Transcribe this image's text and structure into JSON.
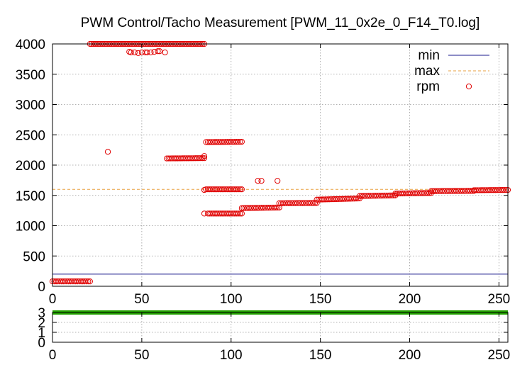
{
  "chart_data": [
    {
      "type": "scatter",
      "title": "PWM Control/Tacho Measurement [PWM_11_0x2e_0_F14_T0.log]",
      "xlabel": "",
      "ylabel": "",
      "xlim": [
        0,
        255
      ],
      "ylim": [
        0,
        4000
      ],
      "xticks": [
        0,
        50,
        100,
        150,
        200,
        250
      ],
      "yticks": [
        0,
        500,
        1000,
        1500,
        2000,
        2500,
        3000,
        3500,
        4000
      ],
      "grid": true,
      "legend_position": "top-right",
      "series": [
        {
          "name": "min",
          "style": "line",
          "color": "#1a1a8c",
          "values": [
            {
              "x": 0,
              "y": 200
            },
            {
              "x": 255,
              "y": 200
            }
          ]
        },
        {
          "name": "max",
          "style": "dashed",
          "color": "#e8a040",
          "values": [
            {
              "x": 0,
              "y": 1600
            },
            {
              "x": 255,
              "y": 1600
            }
          ]
        },
        {
          "name": "rpm",
          "style": "points",
          "color": "#e00000",
          "segments": [
            {
              "x_start": 0,
              "x_end": 21,
              "y_start": 80,
              "y_end": 80
            },
            {
              "x_start": 21,
              "x_end": 85,
              "y_start": 4000,
              "y_end": 4000
            },
            {
              "x_start": 87,
              "x_end": 106,
              "y_start": 1200,
              "y_end": 1200
            },
            {
              "x_start": 106,
              "x_end": 127,
              "y_start": 1290,
              "y_end": 1300
            },
            {
              "x_start": 127,
              "x_end": 148,
              "y_start": 1370,
              "y_end": 1375
            },
            {
              "x_start": 148,
              "x_end": 172,
              "y_start": 1430,
              "y_end": 1450
            },
            {
              "x_start": 172,
              "x_end": 192,
              "y_start": 1490,
              "y_end": 1500
            },
            {
              "x_start": 192,
              "x_end": 212,
              "y_start": 1530,
              "y_end": 1540
            },
            {
              "x_start": 212,
              "x_end": 236,
              "y_start": 1570,
              "y_end": 1575
            },
            {
              "x_start": 236,
              "x_end": 255,
              "y_start": 1585,
              "y_end": 1590
            },
            {
              "x_start": 86,
              "x_end": 106,
              "y_start": 2380,
              "y_end": 2385
            },
            {
              "x_start": 86,
              "x_end": 106,
              "y_start": 1600,
              "y_end": 1600
            },
            {
              "x_start": 64,
              "x_end": 85,
              "y_start": 2110,
              "y_end": 2115
            }
          ],
          "scatter": [
            {
              "x": 31,
              "y": 2220
            },
            {
              "x": 115,
              "y": 1740
            },
            {
              "x": 117,
              "y": 1740
            },
            {
              "x": 126,
              "y": 1740
            },
            {
              "x": 43,
              "y": 3870
            },
            {
              "x": 44,
              "y": 3860
            },
            {
              "x": 46,
              "y": 3860
            },
            {
              "x": 48,
              "y": 3850
            },
            {
              "x": 50,
              "y": 3860
            },
            {
              "x": 52,
              "y": 3860
            },
            {
              "x": 53,
              "y": 3860
            },
            {
              "x": 55,
              "y": 3860
            },
            {
              "x": 57,
              "y": 3870
            },
            {
              "x": 59,
              "y": 3880
            },
            {
              "x": 60,
              "y": 3880
            },
            {
              "x": 63,
              "y": 3860
            },
            {
              "x": 85,
              "y": 1590
            },
            {
              "x": 85,
              "y": 2150
            },
            {
              "x": 85,
              "y": 1200
            }
          ]
        }
      ]
    },
    {
      "type": "line",
      "title": "",
      "xlim": [
        0,
        255
      ],
      "ylim": [
        0,
        3
      ],
      "xticks": [
        0,
        50,
        100,
        150,
        200,
        250
      ],
      "yticks": [
        0,
        1,
        2,
        3
      ],
      "grid": true,
      "series": [
        {
          "name": "",
          "color": "#22a000",
          "values": [
            {
              "x": 0,
              "y": 3
            },
            {
              "x": 255,
              "y": 3
            }
          ]
        }
      ]
    }
  ]
}
